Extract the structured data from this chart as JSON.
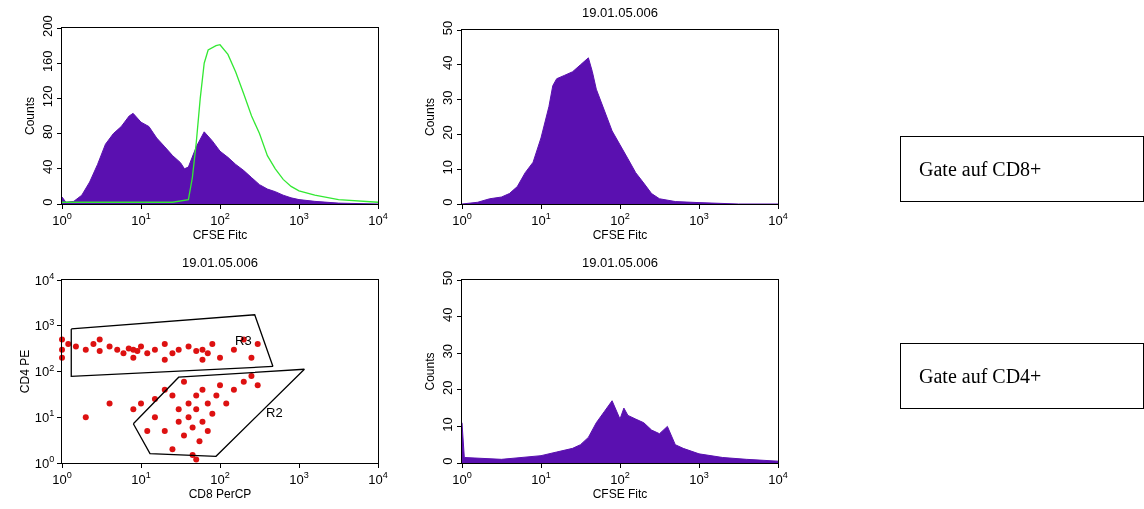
{
  "chart_data": [
    {
      "type": "area",
      "xlabel": "CFSE Fitc",
      "ylabel": "Counts",
      "log": "x",
      "xlim": [
        1,
        10000
      ],
      "xticks": [
        {
          "value": 1,
          "label": "10$^{0}$"
        },
        {
          "value": 10,
          "label": "10$^{1}$"
        },
        {
          "value": 100,
          "label": "10$^{2}$"
        },
        {
          "value": 1000,
          "label": "10$^{3}$"
        },
        {
          "value": 10000,
          "label": "10$^{4}$"
        }
      ],
      "ylim": [
        0,
        200
      ],
      "yticks": [
        0,
        40,
        80,
        120,
        160,
        200
      ],
      "series": [
        {
          "type": "area",
          "color": "#5a10b0",
          "x": [
            1,
            1.12,
            1.41,
            1.78,
            2.24,
            2.82,
            3.55,
            4.47,
            5.62,
            7.08,
            7.94,
            10,
            12.6,
            15.8,
            20,
            25.1,
            31.6,
            35.5,
            39.8,
            50.1,
            63.1,
            79.4,
            100,
            126,
            158,
            200,
            251,
            316,
            398,
            501,
            631,
            794,
            1000,
            1585,
            3162,
            10000
          ],
          "values": [
            8,
            2,
            3,
            10,
            25,
            45,
            68,
            80,
            88,
            100,
            103,
            93,
            88,
            75,
            65,
            55,
            47,
            40,
            42,
            65,
            82,
            72,
            60,
            53,
            45,
            38,
            30,
            22,
            17,
            14,
            10,
            7,
            5,
            3,
            1,
            0
          ]
        },
        {
          "type": "line",
          "color": "#33e833",
          "x": [
            1,
            10,
            25.1,
            39.8,
            44.7,
            50.1,
            56.2,
            63.1,
            70.8,
            89.1,
            100,
            126,
            158,
            200,
            251,
            316,
            398,
            501,
            631,
            794,
            1000,
            1585,
            3162,
            10000
          ],
          "values": [
            2,
            2,
            2,
            5,
            30,
            70,
            120,
            160,
            175,
            180,
            181,
            170,
            150,
            125,
            100,
            80,
            55,
            40,
            28,
            20,
            15,
            10,
            5,
            2
          ]
        }
      ]
    },
    {
      "type": "area",
      "title": "19.01.05.006",
      "xlabel": "CFSE Fitc",
      "ylabel": "Counts",
      "log": "x",
      "xlim": [
        1,
        10000
      ],
      "xticks": [
        {
          "value": 1,
          "label": "10$^{0}$"
        },
        {
          "value": 10,
          "label": "10$^{1}$"
        },
        {
          "value": 100,
          "label": "10$^{2}$"
        },
        {
          "value": 1000,
          "label": "10$^{3}$"
        },
        {
          "value": 10000,
          "label": "10$^{4}$"
        }
      ],
      "ylim": [
        0,
        50
      ],
      "yticks": [
        0,
        10,
        20,
        30,
        40,
        50
      ],
      "series": [
        {
          "type": "area",
          "color": "#5a10b0",
          "x": [
            1,
            1.58,
            2.24,
            3.16,
            3.98,
            5.01,
            6.31,
            7.94,
            10,
            12.6,
            14.1,
            15.8,
            20,
            25.1,
            31.6,
            39.8,
            44.7,
            50.1,
            63.1,
            79.4,
            100,
            126,
            158,
            200,
            251,
            316,
            501,
            1000,
            3162,
            10000
          ],
          "values": [
            0,
            0.5,
            1.5,
            2,
            3,
            5,
            9,
            12,
            19,
            28,
            34,
            36,
            37,
            38,
            40,
            42,
            38,
            33,
            27,
            21,
            17,
            13,
            9,
            6,
            3,
            1.5,
            0.7,
            0.4,
            0,
            0
          ]
        }
      ]
    },
    {
      "type": "other",
      "title": "Gate auf CD8+"
    },
    {
      "type": "scatter",
      "title": "19.01.05.006",
      "xlabel": "CD8 PerCP",
      "ylabel": "CD4 PE",
      "log": "xy",
      "xlim": [
        1,
        10000
      ],
      "xticks": [
        {
          "value": 1,
          "label": "10$^{0}$"
        },
        {
          "value": 10,
          "label": "10$^{1}$"
        },
        {
          "value": 100,
          "label": "10$^{2}$"
        },
        {
          "value": 1000,
          "label": "10$^{3}$"
        },
        {
          "value": 10000,
          "label": "10$^{4}$"
        }
      ],
      "ylim": [
        1,
        10000
      ],
      "yticks": [
        {
          "value": 1,
          "label": "10$^{0}$"
        },
        {
          "value": 10,
          "label": "10$^{1}$"
        },
        {
          "value": 100,
          "label": "10$^{2}$"
        },
        {
          "value": 1000,
          "label": "10$^{3}$"
        },
        {
          "value": 10000,
          "label": "10$^{4}$"
        }
      ],
      "series": [
        {
          "type": "scatter",
          "marker": "circle",
          "color": "#dd1111",
          "x": [
            1,
            1,
            1,
            1.2,
            1.5,
            2,
            2.5,
            3,
            4,
            5,
            6,
            7,
            8,
            9,
            10,
            12,
            15,
            20,
            25,
            30,
            40,
            50,
            60,
            70,
            80,
            100,
            150,
            200,
            250,
            300,
            3,
            8,
            20,
            60,
            10,
            15,
            20,
            25,
            30,
            30,
            35,
            40,
            40,
            45,
            50,
            50,
            55,
            60,
            60,
            70,
            70,
            80,
            90,
            100,
            120,
            150,
            200,
            250,
            300,
            20,
            15,
            25,
            45,
            50,
            35,
            12,
            8,
            4,
            2
          ],
          "values": [
            300,
            500,
            200,
            400,
            350,
            300,
            400,
            280,
            350,
            300,
            250,
            320,
            300,
            280,
            350,
            250,
            300,
            400,
            250,
            300,
            350,
            280,
            300,
            250,
            400,
            200,
            300,
            500,
            200,
            400,
            500,
            200,
            180,
            180,
            20,
            10,
            5,
            30,
            15,
            8,
            4,
            20,
            10,
            6,
            30,
            15,
            3,
            8,
            40,
            20,
            5,
            12,
            30,
            50,
            20,
            40,
            60,
            80,
            50,
            40,
            25,
            2,
            1.5,
            1.2,
            60,
            5,
            15,
            20,
            10
          ]
        },
        {
          "type": "line",
          "name": "R3",
          "color": "#000000",
          "x": [
            1.31,
            275,
            468
          ],
          "values": [
            851,
            1740,
            129
          ]
        },
        {
          "type": "line",
          "color": "#000000",
          "x": [
            1.31,
            1.31,
            468
          ],
          "values": [
            851,
            78,
            129
          ]
        },
        {
          "type": "line",
          "color": "#000000",
          "x": [
            8,
            30,
            1170
          ],
          "values": [
            7.2,
            75,
            112
          ]
        },
        {
          "type": "line",
          "name": "R2",
          "color": "#000000",
          "x": [
            8,
            13,
            89,
            1170
          ],
          "values": [
            7.2,
            1.6,
            1.4,
            112
          ]
        }
      ]
    },
    {
      "type": "area",
      "title": "19.01.05.006",
      "xlabel": "CFSE Fitc",
      "ylabel": "Counts",
      "log": "x",
      "xlim": [
        1,
        10000
      ],
      "xticks": [
        {
          "value": 1,
          "label": "10$^{0}$"
        },
        {
          "value": 10,
          "label": "10$^{1}$"
        },
        {
          "value": 100,
          "label": "10$^{2}$"
        },
        {
          "value": 1000,
          "label": "10$^{3}$"
        },
        {
          "value": 10000,
          "label": "10$^{4}$"
        }
      ],
      "ylim": [
        0,
        50
      ],
      "yticks": [
        0,
        10,
        20,
        30,
        40,
        50
      ],
      "series": [
        {
          "type": "area",
          "color": "#5a10b0",
          "x": [
            1,
            1.07,
            3.16,
            10,
            15.8,
            25.1,
            31.6,
            39.8,
            50.1,
            63.1,
            79.4,
            100,
            112,
            126,
            158,
            200,
            251,
            316,
            398,
            501,
            631,
            1000,
            1995,
            3981,
            10000
          ],
          "values": [
            11,
            1.5,
            1,
            2,
            3,
            4,
            5,
            7,
            11,
            14,
            17,
            12,
            15,
            13,
            12,
            11,
            9,
            8,
            10,
            5,
            4,
            2.5,
            1.5,
            1,
            0.5
          ]
        }
      ]
    },
    {
      "type": "other",
      "title": "Gate auf CD4+"
    }
  ]
}
